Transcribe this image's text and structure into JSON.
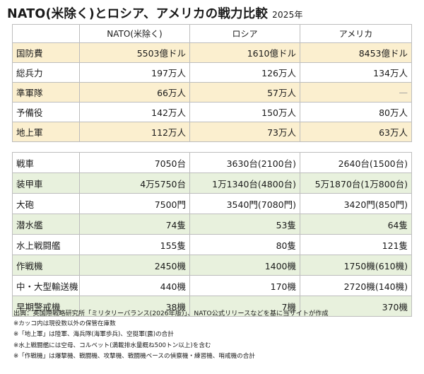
{
  "title": {
    "main": "NATO(米除く)とロシア、アメリカの戦力比較",
    "year": "2025年"
  },
  "columns": [
    "",
    "NATO(米除く)",
    "ロシア",
    "アメリカ"
  ],
  "table1": [
    {
      "label": "国防費",
      "nato": "5503億ドル",
      "russia": "1610億ドル",
      "usa": "8453億ドル",
      "shade": "tan"
    },
    {
      "label": "総兵力",
      "nato": "197万人",
      "russia": "126万人",
      "usa": "134万人",
      "shade": "none"
    },
    {
      "label": "準軍隊",
      "nato": "66万人",
      "russia": "57万人",
      "usa": "—",
      "shade": "tan"
    },
    {
      "label": "予備役",
      "nato": "142万人",
      "russia": "150万人",
      "usa": "80万人",
      "shade": "none"
    },
    {
      "label": "地上軍",
      "nato": "112万人",
      "russia": "73万人",
      "usa": "63万人",
      "shade": "tan"
    }
  ],
  "table2": [
    {
      "label": "戦車",
      "nato": "7050台",
      "russia": "3630台(2100台)",
      "usa": "2640台(1500台)",
      "shade": "none"
    },
    {
      "label": "装甲車",
      "nato": "4万5750台",
      "russia": "1万1340台(4800台)",
      "usa": "5万1870台(1万800台)",
      "shade": "green"
    },
    {
      "label": "大砲",
      "nato": "7500門",
      "russia": "3540門(7080門)",
      "usa": "3420門(850門)",
      "shade": "none"
    },
    {
      "label": "潜水艦",
      "nato": "74隻",
      "russia": "53隻",
      "usa": "64隻",
      "shade": "green"
    },
    {
      "label": "水上戦闘艦",
      "nato": "155隻",
      "russia": "80隻",
      "usa": "121隻",
      "shade": "none"
    },
    {
      "label": "作戦機",
      "nato": "2450機",
      "russia": "1400機",
      "usa": "1750機(610機)",
      "shade": "green"
    },
    {
      "label": "中・大型輸送機",
      "nato": "440機",
      "russia": "170機",
      "usa": "2720機(140機)",
      "shade": "none"
    },
    {
      "label": "早期警戒機",
      "nato": "38機",
      "russia": "7機",
      "usa": "370機",
      "shade": "green"
    }
  ],
  "notes": [
    "出典：英国際戦略研究所「ミリタリーバランス(2026年版)」、NATO公式リリースなどを基に当サイトが作成",
    "※カッコ内は現役数以外の保管在庫数",
    "※「地上軍」は陸軍、海兵隊(海軍歩兵)、空挺軍(露)の合計",
    "※水上戦闘艦には空母、コルベット(満載排水量概ね500トン以上)を含む",
    "※「作戦機」は爆撃機、戦闘機、攻撃機、戦闘機ベースの偵察機・練習機、哨戒機の合計"
  ],
  "colors": {
    "tan_row": "#fbefcf",
    "green_row": "#e8f1dd",
    "border": "#bdbdbd"
  }
}
